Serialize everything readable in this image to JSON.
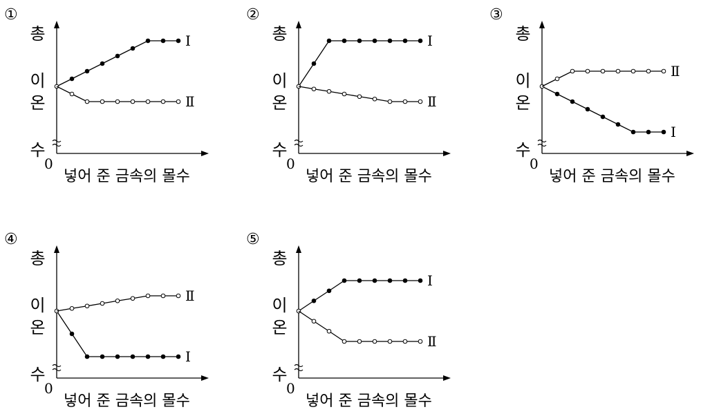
{
  "chart_data": [
    {
      "type": "line",
      "label": "①",
      "y_label": "총 이온 수",
      "x_label": "넣어 준 금속의 몰수",
      "origin_label": "0",
      "ylim": [
        0,
        8
      ],
      "series": [
        {
          "name": "Ⅰ",
          "color": "#000000",
          "marker": "filled",
          "values": [
            4,
            4.5,
            5,
            5.5,
            6,
            6.5,
            7,
            7,
            7
          ]
        },
        {
          "name": "Ⅱ",
          "color": "#000000",
          "marker": "open",
          "values": [
            4,
            3.5,
            3,
            3,
            3,
            3,
            3,
            3,
            3
          ]
        }
      ]
    },
    {
      "type": "line",
      "label": "②",
      "y_label": "총 이온 수",
      "x_label": "넣어 준 금속의 몰수",
      "origin_label": "0",
      "ylim": [
        0,
        8
      ],
      "series": [
        {
          "name": "Ⅰ",
          "color": "#000000",
          "marker": "filled",
          "values": [
            4,
            5.5,
            7,
            7,
            7,
            7,
            7,
            7,
            7
          ]
        },
        {
          "name": "Ⅱ",
          "color": "#000000",
          "marker": "open",
          "values": [
            4,
            3.83,
            3.67,
            3.5,
            3.33,
            3.17,
            3,
            3,
            3
          ]
        }
      ]
    },
    {
      "type": "line",
      "label": "③",
      "y_label": "총 이온 수",
      "x_label": "넣어 준 금속의 몰수",
      "origin_label": "0",
      "ylim": [
        0,
        8
      ],
      "series": [
        {
          "name": "Ⅰ",
          "color": "#000000",
          "marker": "filled",
          "values": [
            4,
            3.5,
            3,
            2.5,
            2,
            1.5,
            1,
            1,
            1
          ]
        },
        {
          "name": "Ⅱ",
          "color": "#000000",
          "marker": "open",
          "values": [
            4,
            4.5,
            5,
            5,
            5,
            5,
            5,
            5,
            5
          ]
        }
      ]
    },
    {
      "type": "line",
      "label": "④",
      "y_label": "총 이온 수",
      "x_label": "넣어 준 금속의 몰수",
      "origin_label": "0",
      "ylim": [
        0,
        8
      ],
      "series": [
        {
          "name": "Ⅰ",
          "color": "#000000",
          "marker": "filled",
          "values": [
            4,
            2.5,
            1,
            1,
            1,
            1,
            1,
            1,
            1
          ]
        },
        {
          "name": "Ⅱ",
          "color": "#000000",
          "marker": "open",
          "values": [
            4,
            4.17,
            4.33,
            4.5,
            4.67,
            4.83,
            5,
            5,
            5
          ]
        }
      ]
    },
    {
      "type": "line",
      "label": "⑤",
      "y_label": "총 이온 수",
      "x_label": "넣어 준 금속의 몰수",
      "origin_label": "0",
      "ylim": [
        0,
        8
      ],
      "series": [
        {
          "name": "Ⅰ",
          "color": "#000000",
          "marker": "filled",
          "values": [
            4,
            4.67,
            5.33,
            6,
            6,
            6,
            6,
            6,
            6
          ]
        },
        {
          "name": "Ⅱ",
          "color": "#000000",
          "marker": "open",
          "values": [
            4,
            3.33,
            2.67,
            2,
            2,
            2,
            2,
            2,
            2
          ]
        }
      ]
    }
  ]
}
